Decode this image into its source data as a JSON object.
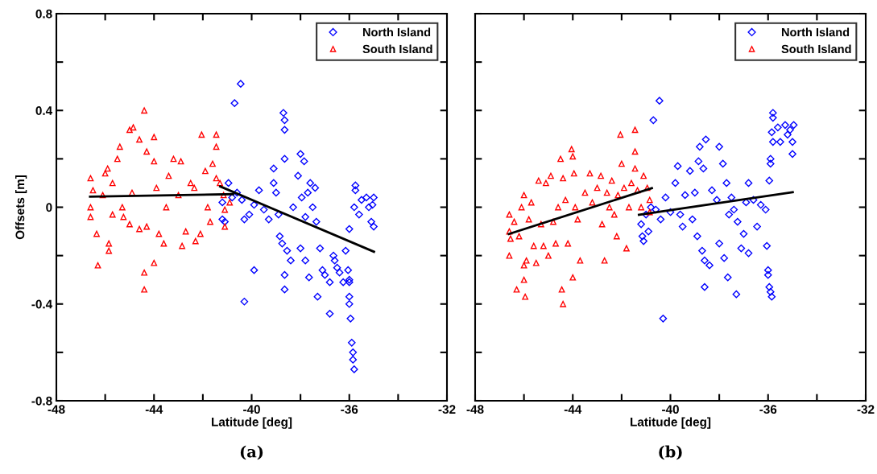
{
  "chart_data": [
    {
      "type": "scatter",
      "xlabel": "Latitude [deg]",
      "ylabel": "Offsets [m]",
      "annotations": [
        "(a)"
      ],
      "xlim": [
        -48,
        -32
      ],
      "ylim": [
        -0.8,
        0.8
      ],
      "xticks": [
        -48,
        {
          "value": -46,
          "label": null
        },
        -44,
        {
          "value": -42,
          "label": null
        },
        -40,
        {
          "value": -38,
          "label": null
        },
        -36,
        {
          "value": -34,
          "label": null
        },
        -32
      ],
      "yticks": [
        -0.8,
        {
          "value": -0.6,
          "label": null
        },
        -0.4,
        {
          "value": -0.2,
          "label": null
        },
        0,
        {
          "value": 0.2,
          "label": null
        },
        0.4,
        {
          "value": 0.6,
          "label": null
        },
        0.8
      ],
      "legend": "top right",
      "grid": false,
      "series": [
        {
          "name": "North Island",
          "color": "#0000ff",
          "marker": "diamond",
          "x": [
            -41.2,
            -41.2,
            -41.1,
            -40.95,
            -40.8,
            -40.7,
            -40.45,
            -40.6,
            -40.4,
            -40.3,
            -40.3,
            -40.1,
            -39.9,
            -39.9,
            -39.7,
            -39.5,
            -39.3,
            -39.1,
            -39.1,
            -39.0,
            -38.9,
            -38.85,
            -38.75,
            -38.7,
            -38.65,
            -38.65,
            -38.65,
            -38.65,
            -38.65,
            -38.55,
            -38.4,
            -38.3,
            -38.1,
            -38.0,
            -38.0,
            -37.95,
            -37.85,
            -37.8,
            -37.8,
            -37.7,
            -37.6,
            -37.65,
            -37.5,
            -37.4,
            -37.35,
            -37.2,
            -37.3,
            -37.1,
            -37.0,
            -36.8,
            -36.8,
            -36.65,
            -36.6,
            -36.5,
            -36.4,
            -36.25,
            -36.15,
            -36.05,
            -36.0,
            -36.0,
            -36.0,
            -35.95,
            -35.9,
            -35.85,
            -35.85,
            -35.8,
            -36.0,
            -36.0,
            -35.75,
            -35.75,
            -35.8,
            -35.6,
            -35.5,
            -35.3,
            -35.2,
            -35.05,
            -35.0,
            -35.1,
            -35.0
          ],
          "values": [
            0.02,
            -0.05,
            -0.06,
            0.1,
            0.04,
            0.43,
            0.51,
            0.06,
            0.03,
            -0.39,
            -0.05,
            -0.03,
            -0.26,
            0.01,
            0.07,
            -0.01,
            -0.05,
            0.16,
            0.1,
            0.06,
            -0.03,
            -0.12,
            -0.15,
            0.39,
            0.36,
            0.32,
            0.2,
            -0.28,
            -0.34,
            -0.18,
            -0.22,
            0.0,
            0.13,
            0.22,
            -0.17,
            0.04,
            0.19,
            -0.04,
            -0.22,
            0.06,
            0.1,
            -0.29,
            0.0,
            0.08,
            -0.06,
            -0.17,
            -0.37,
            -0.26,
            -0.28,
            -0.44,
            -0.31,
            -0.2,
            -0.22,
            -0.25,
            -0.27,
            -0.31,
            -0.18,
            -0.26,
            -0.3,
            -0.37,
            -0.4,
            -0.46,
            -0.56,
            -0.6,
            -0.63,
            -0.67,
            -0.31,
            -0.09,
            0.09,
            0.07,
            0.0,
            -0.03,
            0.03,
            0.04,
            0.0,
            0.01,
            0.04,
            -0.06,
            -0.08
          ]
        },
        {
          "name": "South Island",
          "color": "#ff0000",
          "marker": "triangle",
          "x": [
            -46.6,
            -46.6,
            -46.6,
            -46.5,
            -46.35,
            -46.3,
            -46.1,
            -46.0,
            -45.9,
            -45.85,
            -45.85,
            -45.7,
            -45.7,
            -45.5,
            -45.4,
            -45.3,
            -45.25,
            -45.0,
            -45.0,
            -44.85,
            -44.9,
            -44.6,
            -44.6,
            -44.4,
            -44.4,
            -44.4,
            -44.3,
            -44.3,
            -44.0,
            -44.0,
            -44.0,
            -43.9,
            -43.8,
            -43.6,
            -43.5,
            -43.4,
            -43.2,
            -43.0,
            -42.9,
            -42.85,
            -42.7,
            -42.5,
            -42.35,
            -42.3,
            -42.1,
            -42.05,
            -41.9,
            -41.8,
            -41.7,
            -41.6,
            -41.45,
            -41.45,
            -41.45,
            -41.3,
            -41.15,
            -41.1,
            -41.1,
            -40.9
          ],
          "values": [
            0.12,
            0.0,
            -0.04,
            0.07,
            -0.11,
            -0.24,
            0.05,
            0.14,
            0.16,
            -0.15,
            -0.18,
            0.1,
            -0.03,
            0.2,
            0.25,
            0.0,
            -0.04,
            0.32,
            -0.07,
            0.33,
            0.06,
            0.28,
            -0.09,
            0.4,
            -0.34,
            -0.27,
            0.23,
            -0.08,
            0.29,
            0.19,
            -0.23,
            0.08,
            -0.11,
            -0.15,
            0.0,
            0.13,
            0.2,
            0.05,
            0.19,
            -0.16,
            -0.1,
            0.1,
            0.08,
            -0.14,
            -0.11,
            0.3,
            0.15,
            0.0,
            -0.06,
            0.18,
            0.3,
            0.25,
            0.12,
            0.1,
            0.05,
            -0.01,
            -0.08,
            0.02
          ]
        },
        {
          "type": "line",
          "color": "#000000",
          "x": [
            -46.62,
            -40.76
          ],
          "values": [
            0.044,
            0.054
          ]
        },
        {
          "type": "line",
          "color": "#000000",
          "x": [
            -41.29,
            -34.99
          ],
          "values": [
            0.086,
            -0.184
          ]
        }
      ]
    },
    {
      "type": "scatter",
      "xlabel": "Latitude [deg]",
      "annotations": [
        "(b)"
      ],
      "tick_labels": "x",
      "xlim": [
        -48,
        -32
      ],
      "ylim": [
        -0.8,
        0.8
      ],
      "xticks": [
        -48,
        {
          "value": -46,
          "label": null
        },
        -44,
        {
          "value": -42,
          "label": null
        },
        -40,
        {
          "value": -38,
          "label": null
        },
        -36,
        {
          "value": -34,
          "label": null
        },
        -32
      ],
      "yticks": [
        -0.8,
        {
          "value": -0.6,
          "label": null
        },
        -0.4,
        {
          "value": -0.2,
          "label": null
        },
        0,
        {
          "value": 0.2,
          "label": null
        },
        0.4,
        {
          "value": 0.6,
          "label": null
        },
        0.8
      ],
      "legend": "top right",
      "grid": false,
      "series": [
        {
          "name": "North Island",
          "color": "#0000ff",
          "marker": "diamond",
          "x": [
            -41.2,
            -41.15,
            -41.1,
            -41.0,
            -40.9,
            -40.8,
            -40.7,
            -40.6,
            -40.45,
            -40.4,
            -40.3,
            -40.2,
            -40.0,
            -39.8,
            -39.7,
            -39.6,
            -39.5,
            -39.4,
            -39.2,
            -39.1,
            -39.0,
            -38.9,
            -38.85,
            -38.8,
            -38.7,
            -38.65,
            -38.6,
            -38.6,
            -38.55,
            -38.4,
            -38.3,
            -38.1,
            -38.0,
            -38.0,
            -37.85,
            -37.8,
            -37.7,
            -37.6,
            -37.65,
            -37.5,
            -37.4,
            -37.3,
            -37.25,
            -37.1,
            -37.0,
            -36.9,
            -36.8,
            -36.8,
            -36.6,
            -36.45,
            -36.3,
            -36.1,
            -36.05,
            -36.0,
            -36.0,
            -35.95,
            -35.9,
            -35.85,
            -35.95,
            -35.9,
            -35.9,
            -35.8,
            -35.8,
            -35.85,
            -35.8,
            -35.6,
            -35.5,
            -35.3,
            -35.2,
            -35.1,
            -35.0,
            -34.95,
            -35.0
          ],
          "values": [
            -0.07,
            -0.12,
            -0.14,
            -0.03,
            -0.1,
            0.0,
            0.36,
            -0.01,
            0.44,
            -0.05,
            -0.46,
            0.04,
            -0.02,
            0.1,
            0.17,
            -0.03,
            -0.08,
            0.05,
            0.15,
            -0.05,
            0.06,
            -0.12,
            0.19,
            0.25,
            -0.18,
            0.16,
            -0.22,
            -0.33,
            0.28,
            -0.24,
            0.07,
            0.03,
            0.25,
            -0.15,
            0.18,
            -0.21,
            0.1,
            -0.03,
            -0.29,
            0.04,
            -0.01,
            -0.36,
            -0.06,
            -0.17,
            -0.11,
            0.02,
            -0.19,
            0.1,
            0.03,
            -0.08,
            0.01,
            -0.01,
            -0.16,
            -0.26,
            -0.28,
            -0.33,
            -0.35,
            -0.37,
            0.11,
            0.2,
            0.18,
            0.39,
            0.37,
            0.31,
            0.27,
            0.33,
            0.27,
            0.34,
            0.3,
            0.32,
            0.27,
            0.34,
            0.22
          ]
        },
        {
          "name": "South Island",
          "color": "#ff0000",
          "marker": "triangle",
          "x": [
            -46.6,
            -46.6,
            -46.6,
            -46.55,
            -46.4,
            -46.3,
            -46.2,
            -46.1,
            -46.0,
            -46.0,
            -46.0,
            -45.95,
            -45.9,
            -45.8,
            -45.7,
            -45.6,
            -45.5,
            -45.4,
            -45.3,
            -45.2,
            -45.1,
            -45.0,
            -44.9,
            -44.8,
            -44.7,
            -44.6,
            -44.5,
            -44.45,
            -44.4,
            -44.4,
            -44.3,
            -44.2,
            -44.05,
            -44.0,
            -44.0,
            -43.95,
            -43.9,
            -43.8,
            -43.7,
            -43.5,
            -43.3,
            -43.2,
            -43.0,
            -42.85,
            -42.8,
            -42.7,
            -42.6,
            -42.5,
            -42.4,
            -42.3,
            -42.2,
            -42.15,
            -42.05,
            -42.0,
            -41.9,
            -41.8,
            -41.7,
            -41.6,
            -41.45,
            -41.45,
            -41.45,
            -41.35,
            -41.2,
            -41.1,
            -40.95,
            -40.85,
            -40.85
          ],
          "values": [
            -0.03,
            -0.1,
            -0.2,
            -0.13,
            -0.06,
            -0.34,
            -0.12,
            0.0,
            0.05,
            -0.24,
            -0.3,
            -0.37,
            -0.22,
            -0.05,
            0.02,
            -0.16,
            -0.23,
            0.11,
            -0.07,
            -0.16,
            0.1,
            -0.2,
            0.13,
            -0.06,
            -0.15,
            0.0,
            0.2,
            -0.34,
            -0.4,
            0.12,
            0.03,
            -0.15,
            0.24,
            0.21,
            -0.29,
            0.14,
            0.0,
            -0.05,
            -0.22,
            0.06,
            0.14,
            0.02,
            0.08,
            0.13,
            -0.07,
            -0.22,
            0.06,
            0.0,
            0.11,
            -0.03,
            -0.12,
            0.05,
            0.3,
            0.18,
            0.08,
            -0.17,
            0.0,
            0.1,
            0.32,
            0.23,
            0.16,
            0.07,
            0.0,
            0.13,
            0.08,
            0.03,
            -0.02
          ]
        },
        {
          "type": "line",
          "color": "#000000",
          "x": [
            -46.62,
            -40.76
          ],
          "values": [
            -0.111,
            0.079
          ]
        },
        {
          "type": "line",
          "color": "#000000",
          "x": [
            -41.29,
            -34.99
          ],
          "values": [
            -0.031,
            0.062
          ]
        }
      ]
    }
  ]
}
